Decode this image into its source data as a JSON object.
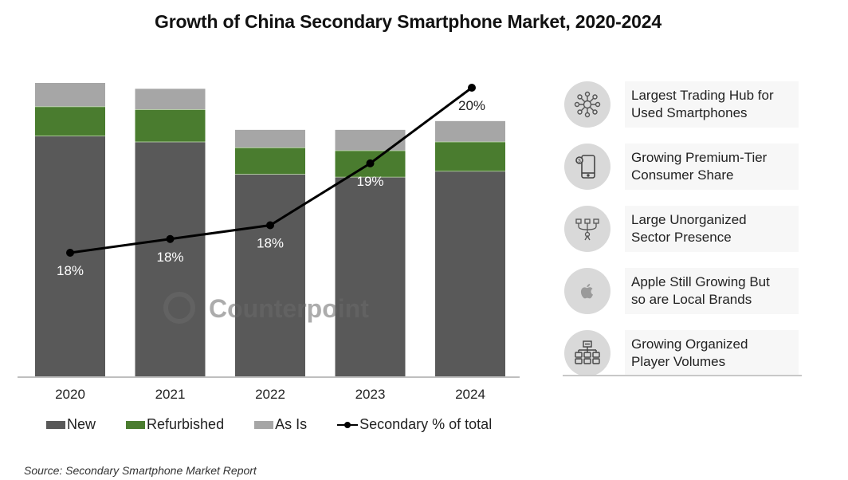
{
  "chart_data": {
    "type": "bar",
    "stacked": true,
    "title": "Growth of China Secondary Smartphone Market, 2020-2024",
    "xlabel": "",
    "ylabel": "",
    "y_axis_shown": false,
    "value_units": "relative volume (estimated, 2020 total = 100)",
    "categories": [
      "2020",
      "2021",
      "2022",
      "2023",
      "2024"
    ],
    "series": [
      {
        "name": "New",
        "color": "#595959",
        "values": [
          82,
          80,
          69,
          68,
          70
        ]
      },
      {
        "name": "Refurbished",
        "color": "#4a7c2f",
        "values": [
          10,
          11,
          9,
          9,
          10
        ]
      },
      {
        "name": "As Is",
        "color": "#a6a6a6",
        "values": [
          8,
          7,
          6,
          7,
          7
        ]
      }
    ],
    "line_series": {
      "name": "Secondary % of total",
      "color": "#000000",
      "values": [
        18,
        18,
        18,
        19,
        20
      ],
      "estimated_precise_values": [
        17.8,
        18.0,
        18.2,
        19.1,
        20.2
      ],
      "labels": [
        "18%",
        "18%",
        "18%",
        "19%",
        "20%"
      ],
      "ylim": [
        15.8,
        20.2
      ]
    },
    "ylim": [
      0,
      100
    ],
    "grid": false,
    "legend_position": "bottom",
    "legend": [
      "New",
      "Refurbished",
      "As Is",
      "Secondary % of total"
    ],
    "watermark": "Counterpoint",
    "source": "Source: Secondary Smartphone Market Report"
  },
  "panel": {
    "items": [
      {
        "icon": "network-hub-icon",
        "text_line1": "Largest Trading Hub for",
        "text_line2": "Used Smartphones"
      },
      {
        "icon": "smartphone-coin-icon",
        "text_line1": "Growing Premium-Tier",
        "text_line2": "Consumer Share"
      },
      {
        "icon": "scattered-sector-icon",
        "text_line1": "Large Unorganized",
        "text_line2": "Sector Presence"
      },
      {
        "icon": "apple-logo-icon",
        "text_line1": "Apple Still Growing But",
        "text_line2": "so are Local Brands"
      },
      {
        "icon": "org-chart-icon",
        "text_line1": "Growing Organized",
        "text_line2": "Player Volumes"
      }
    ]
  },
  "colors": {
    "new": "#595959",
    "refurbished": "#4a7c2f",
    "as_is": "#a6a6a6",
    "line": "#000000",
    "icon_bg": "#d9d9d9"
  }
}
